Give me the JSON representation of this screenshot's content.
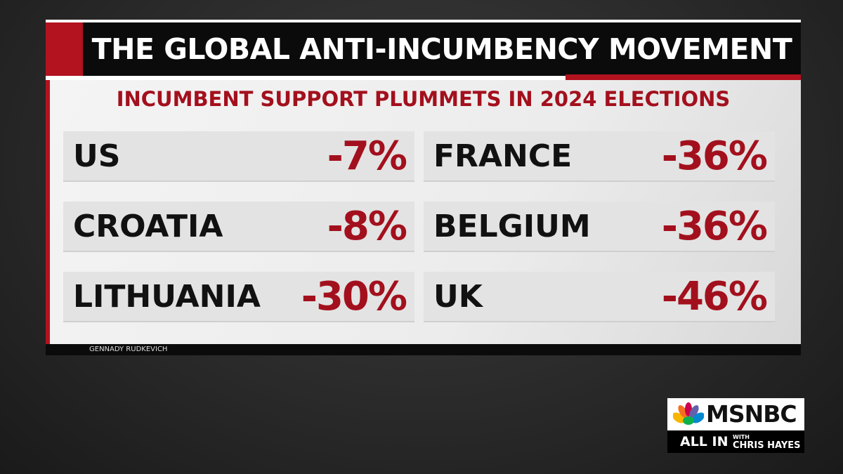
{
  "header": {
    "title": "THE GLOBAL ANTI-INCUMBENCY MOVEMENT",
    "subtitle": "INCUMBENT SUPPORT PLUMMETS IN 2024 ELECTIONS"
  },
  "rows": [
    [
      {
        "country": "US",
        "change": "-7%"
      },
      {
        "country": "FRANCE",
        "change": "-36%"
      }
    ],
    [
      {
        "country": "CROATIA",
        "change": "-8%"
      },
      {
        "country": "BELGIUM",
        "change": "-36%"
      }
    ],
    [
      {
        "country": "LITHUANIA",
        "change": "-30%"
      },
      {
        "country": "UK",
        "change": "-46%"
      }
    ]
  ],
  "credit": "GENNADY RUDKEVICH",
  "logo": {
    "network": "MSNBC",
    "show": "ALL IN",
    "with": "WITH",
    "host": "CHRIS HAYES"
  }
}
